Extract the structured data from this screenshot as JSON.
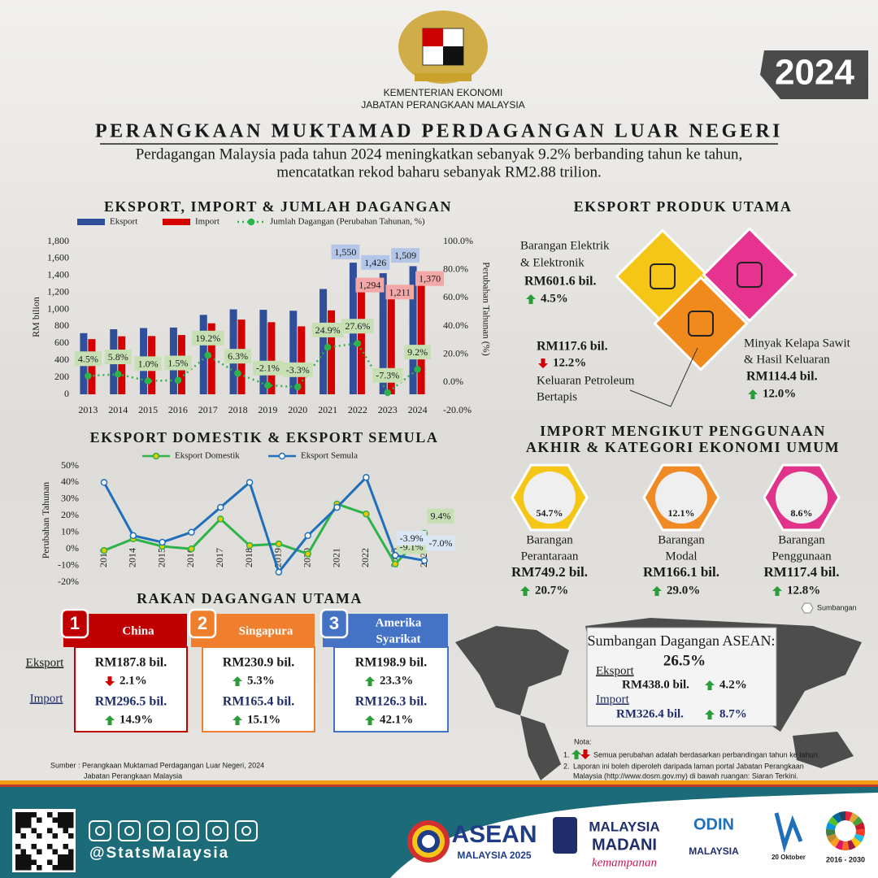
{
  "header": {
    "ministry": "KEMENTERIAN EKONOMI",
    "department": "JABATAN PERANGKAAN MALAYSIA",
    "year": "2024",
    "title": "PERANGKAAN MUKTAMAD PERDAGANGAN LUAR NEGERI",
    "subtitle": [
      "Perdagangan Malaysia pada tahun 2024 meningkatkan sebanyak 9.2% berbanding tahun ke tahun,",
      "mencatatkan  rekod baharu sebanyak RM2.88 trilion."
    ]
  },
  "chart_data": [
    {
      "type": "bar",
      "title": "EKSPORT, IMPORT & JUMLAH DAGANGAN",
      "ylabel": "RM bilion",
      "y2label": "Perubahan Tahunan (%)",
      "categories": [
        "2013",
        "2014",
        "2015",
        "2016",
        "2017",
        "2018",
        "2019",
        "2020",
        "2021",
        "2022",
        "2023",
        "2024"
      ],
      "series": [
        {
          "name": "Eksport",
          "color": "#2f4f9a",
          "label_color": "#b4c6e7",
          "values": [
            720,
            766,
            780,
            786,
            935,
            1000,
            995,
            984,
            1240,
            1550,
            1426,
            1509
          ],
          "value_labels": [
            null,
            null,
            null,
            null,
            null,
            null,
            null,
            null,
            null,
            "1,550",
            "1,426",
            "1,509"
          ]
        },
        {
          "name": "Import",
          "color": "#d40000",
          "label_color": "#f4a7a7",
          "values": [
            650,
            683,
            686,
            698,
            836,
            880,
            849,
            800,
            988,
            1294,
            1211,
            1370
          ],
          "value_labels": [
            null,
            null,
            null,
            null,
            null,
            null,
            null,
            null,
            null,
            "1,294",
            "1,211",
            "1,370"
          ]
        },
        {
          "name": "Jumlah Dagangan (Perubahan Tahunan, %)",
          "type": "line",
          "axis": "y2",
          "line_style": "dotted",
          "color": "#2db34a",
          "marker_color": "#2db34a",
          "label_color": "#c6e0b4",
          "values": [
            4.5,
            5.8,
            1.0,
            1.5,
            19.2,
            6.3,
            -2.1,
            -3.3,
            24.9,
            27.6,
            -7.3,
            9.2
          ],
          "value_labels": [
            "4.5%",
            "5.8%",
            "1.0%",
            "1.5%",
            "19.2%",
            "6.3%",
            "-2.1%",
            "-3.3%",
            "24.9%",
            "27.6%",
            "-7.3%",
            "9.2%"
          ]
        }
      ],
      "ylim": [
        0,
        1800
      ],
      "yticks": [
        0,
        200,
        400,
        600,
        800,
        {
          "value": 1000,
          "label": "1,000"
        },
        {
          "value": 1200,
          "label": "1,200"
        },
        {
          "value": 1400,
          "label": "1,400"
        },
        {
          "value": 1600,
          "label": "1,600"
        },
        {
          "value": 1800,
          "label": "1,800"
        }
      ],
      "y2lim": [
        -20,
        100
      ],
      "y2ticks": [
        {
          "value": -20,
          "label": "-20.0%"
        },
        {
          "value": 0,
          "label": "0.0%"
        },
        {
          "value": 20,
          "label": "20.0%"
        },
        {
          "value": 40,
          "label": "40.0%"
        },
        {
          "value": 60,
          "label": "60.0%"
        },
        {
          "value": 80,
          "label": "80.0%"
        },
        {
          "value": 100,
          "label": "100.0%"
        }
      ]
    },
    {
      "type": "line",
      "title": "EKSPORT DOMESTIK & EKSPORT SEMULA",
      "ylabel": "Perubahan Tahunan",
      "categories": [
        "2013",
        "2014",
        "2015",
        "2016",
        "2017",
        "2018",
        "2019",
        "2020",
        "2021",
        "2022",
        "2023",
        "2024"
      ],
      "series": [
        {
          "name": "Eksport Domestik",
          "color": "#2db34a",
          "marker_color": "#e8c800",
          "label_color": "#c6e0b4",
          "values": [
            -1,
            6,
            1.5,
            0,
            18,
            2,
            3,
            -3,
            27,
            21,
            -9.1,
            9.4
          ],
          "value_labels": [
            null,
            null,
            null,
            null,
            null,
            null,
            null,
            null,
            null,
            null,
            "-9.1%",
            "9.4%"
          ]
        },
        {
          "name": "Eksport Semula",
          "color": "#1f6fba",
          "marker_color": "#ffffff",
          "label_color": "#dbe6f4",
          "values": [
            40,
            8,
            4,
            10,
            25,
            40,
            -14,
            8,
            25,
            43,
            -3.9,
            -7.0
          ],
          "value_labels": [
            null,
            null,
            null,
            null,
            null,
            null,
            null,
            null,
            null,
            null,
            "-3.9%",
            "-7.0%"
          ]
        }
      ],
      "ylim": [
        -20,
        50
      ],
      "yticks": [
        {
          "value": -20,
          "label": "-20%"
        },
        {
          "value": -10,
          "label": "-10%"
        },
        {
          "value": 0,
          "label": "0%"
        },
        {
          "value": 10,
          "label": "10%"
        },
        {
          "value": 20,
          "label": "20%"
        },
        {
          "value": 30,
          "label": "30%"
        },
        {
          "value": 40,
          "label": "40%"
        },
        {
          "value": 50,
          "label": "50%"
        }
      ]
    }
  ],
  "export_products": {
    "title": "EKSPORT PRODUK UTAMA",
    "items": [
      {
        "name": [
          "Barangan Elektrik",
          "& Elektronik"
        ],
        "value": "RM601.6 bil.",
        "change": "4.5%",
        "trend": "up",
        "color": "#f5c518"
      },
      {
        "name": [
          "Keluaran Petroleum",
          "Bertapis"
        ],
        "value": "RM117.6 bil.",
        "change": "12.2%",
        "trend": "down",
        "color": "#f08a1c"
      },
      {
        "name": [
          "Minyak Kelapa Sawit",
          "& Hasil Keluaran"
        ],
        "value": "RM114.4 bil.",
        "change": "12.0%",
        "trend": "up",
        "color": "#e6338f"
      }
    ]
  },
  "imports": {
    "title": [
      "IMPORT MENGIKUT PENGGUNAAN",
      "AKHIR & KATEGORI EKONOMI UMUM"
    ],
    "legend": "Sumbangan",
    "items": [
      {
        "share": "54.7%",
        "name": [
          "Barangan",
          "Perantaraan"
        ],
        "value": "RM749.2 bil.",
        "change": "20.7%",
        "trend": "up",
        "color": "#f5c518"
      },
      {
        "share": "12.1%",
        "name": [
          "Barangan",
          "Modal"
        ],
        "value": "RM166.1 bil.",
        "change": "29.0%",
        "trend": "up",
        "color": "#f08a24"
      },
      {
        "share": "8.6%",
        "name": [
          "Barangan",
          "Penggunaan"
        ],
        "value": "RM117.4 bil.",
        "change": "12.8%",
        "trend": "up",
        "color": "#e0338a"
      }
    ]
  },
  "partners": {
    "title": "RAKAN DAGANGAN UTAMA",
    "row_labels": [
      "Eksport",
      "Import"
    ],
    "items": [
      {
        "rank": "1",
        "name": [
          "China"
        ],
        "color": "#c00000",
        "export": {
          "value": "RM187.8 bil.",
          "change": "2.1%",
          "trend": "down"
        },
        "import": {
          "value": "RM296.5 bil.",
          "change": "14.9%",
          "trend": "up"
        }
      },
      {
        "rank": "2",
        "name": [
          "Singapura"
        ],
        "color": "#f07f2d",
        "export": {
          "value": "RM230.9 bil.",
          "change": "5.3%",
          "trend": "up"
        },
        "import": {
          "value": "RM165.4 bil.",
          "change": "15.1%",
          "trend": "up"
        }
      },
      {
        "rank": "3",
        "name": [
          "Amerika",
          "Syarikat"
        ],
        "color": "#4472c4",
        "export": {
          "value": "RM198.9 bil.",
          "change": "23.3%",
          "trend": "up"
        },
        "import": {
          "value": "RM126.3 bil.",
          "change": "42.1%",
          "trend": "up"
        }
      }
    ]
  },
  "asean": {
    "title": "Sumbangan Dagangan ASEAN:",
    "share": "26.5%",
    "export": {
      "label": "Eksport",
      "value": "RM438.0 bil.",
      "change": "4.2%",
      "trend": "up"
    },
    "import": {
      "label": "Import",
      "value": "RM326.4 bil.",
      "change": "8.7%",
      "trend": "up"
    }
  },
  "notes": {
    "title": "Nota:",
    "items": [
      {
        "number": "1.",
        "lines": [
          "Semua perubahan adalah berdasarkan perbandingan tahun ke tahun."
        ]
      },
      {
        "number": "2.",
        "lines": [
          "Laporan ini boleh diperoleh daripada laman portal Jabatan Perangkaan",
          "Malaysia (http://www.dosm.gov.my) di bawah ruangan: Siaran Terkini."
        ]
      }
    ]
  },
  "source": [
    "Sumber : Perangkaan Muktamad Perdagangan Luar Negeri, 2024",
    "Jabatan Perangkaan Malaysia"
  ],
  "footer": {
    "handle": "@StatsMalaysia",
    "logos": [
      [
        "ASEAN",
        "MALAYSIA 2025"
      ],
      [
        "MALAYSIA",
        "MADANI",
        "kemampanan"
      ],
      [
        "ODIN",
        "MALAYSIA"
      ],
      [
        "20 Oktober"
      ],
      [
        "2016 - 2030"
      ]
    ]
  }
}
